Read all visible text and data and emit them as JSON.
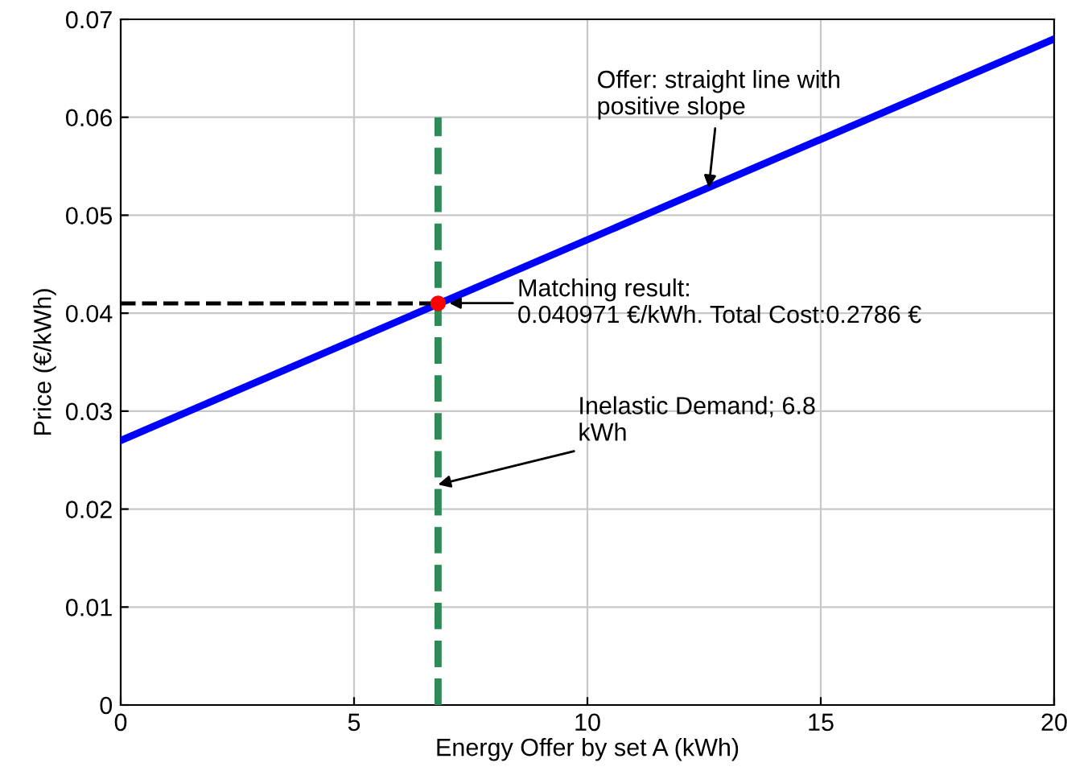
{
  "chart_data": {
    "type": "line",
    "xlabel": "Energy Offer by set A (kWh)",
    "ylabel": "Price (€/kWh)",
    "xlim": [
      0,
      20
    ],
    "ylim": [
      0,
      0.07
    ],
    "xticks": [
      0,
      5,
      10,
      15,
      20
    ],
    "yticks": [
      0,
      0.01,
      0.02,
      0.03,
      0.04,
      0.05,
      0.06,
      0.07
    ],
    "grid": true,
    "series": [
      {
        "color": "#0000ff",
        "x": [
          0,
          20
        ],
        "values": [
          0.027,
          0.068
        ],
        "line_style": "solid",
        "marker": "none"
      },
      {
        "color": "#2e8b57",
        "x": [
          6.8,
          6.8
        ],
        "values": [
          0,
          0.06
        ],
        "line_style": "dashed",
        "marker": "none"
      },
      {
        "color": "#000000",
        "x": [
          0,
          6.8
        ],
        "values": [
          0.041,
          0.041
        ],
        "line_style": "dashed",
        "marker": "none"
      },
      {
        "type": "scatter",
        "color": "#ff0000",
        "x": [
          6.8
        ],
        "values": [
          0.041
        ],
        "marker": "circle"
      }
    ],
    "annotations": [
      {
        "text": "Offer: straight line with\npositive slope",
        "x": 12.6,
        "y": 0.0528
      },
      "Matching result:\n0.040971 €/kWh. Total Cost:0.2786 €",
      {
        "text": "Inelastic Demand; 6.8\nkWh",
        "x": 6.8,
        "y": 0.0225
      }
    ]
  }
}
